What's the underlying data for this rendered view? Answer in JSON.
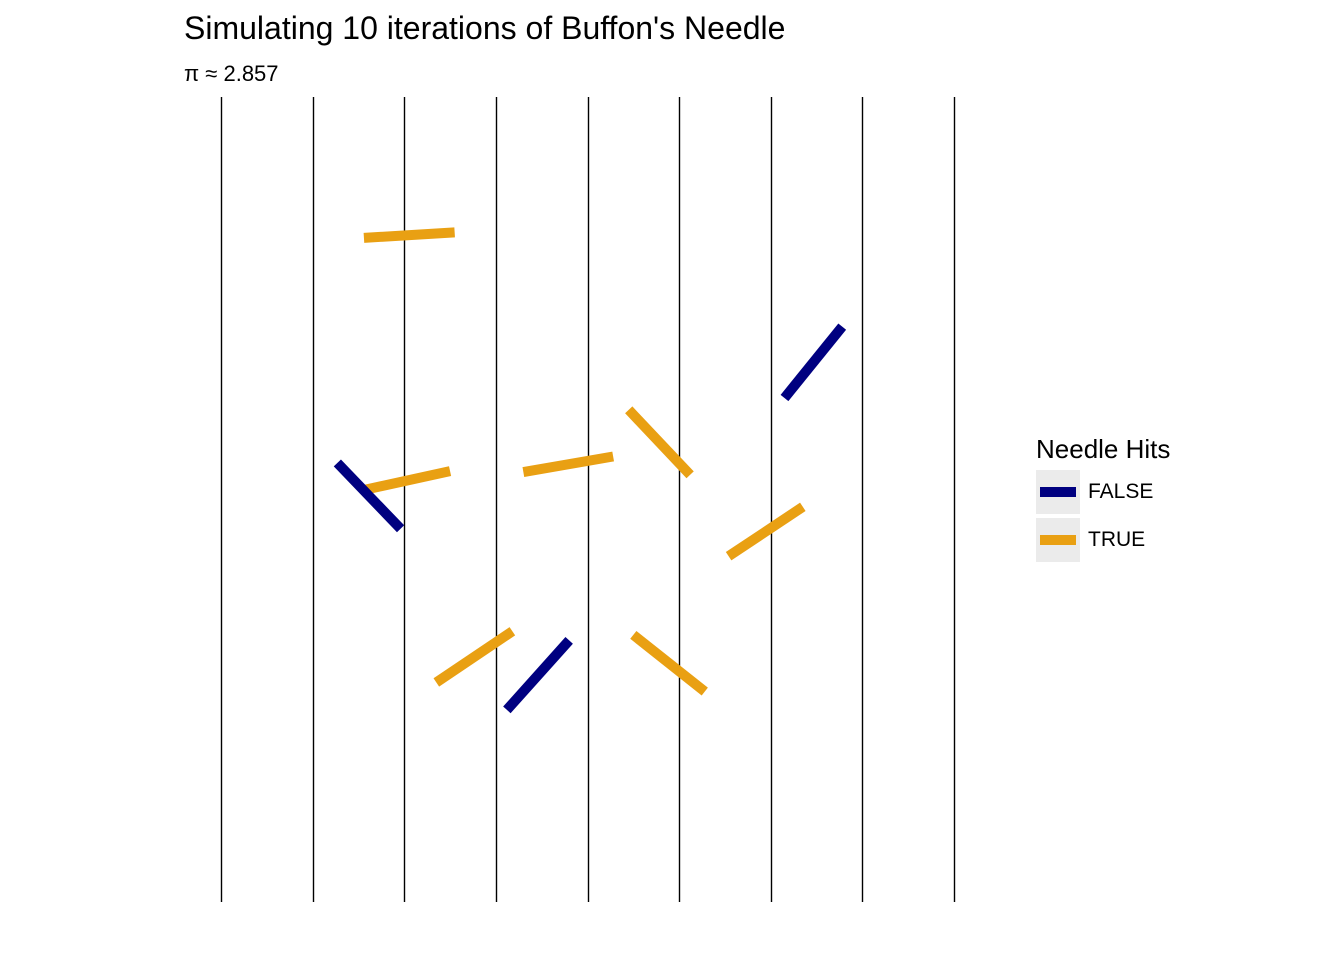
{
  "chart_data": {
    "type": "scatter",
    "title": "Simulating 10 iterations of Buffon's Needle",
    "subtitle": "π ≈ 2.857",
    "xlabel": "",
    "ylabel": "",
    "xlim": [
      0,
      8
    ],
    "ylim": [
      0,
      8.8
    ],
    "grid": false,
    "legend_position": "right",
    "line_positions": [
      0,
      1,
      2,
      3,
      4,
      5,
      6,
      7,
      8
    ],
    "legend": {
      "title": "Needle Hits",
      "entries": [
        {
          "label": "FALSE",
          "color": "#000080"
        },
        {
          "label": "TRUE",
          "color": "#e9a013"
        }
      ]
    },
    "needles": [
      {
        "x0": 1.56,
        "y0": 7.26,
        "x1": 2.55,
        "y1": 7.32,
        "hit": "TRUE"
      },
      {
        "x0": 6.15,
        "y0": 5.51,
        "x1": 6.78,
        "y1": 6.29,
        "hit": "FALSE"
      },
      {
        "x0": 4.45,
        "y0": 5.38,
        "x1": 5.12,
        "y1": 4.67,
        "hit": "TRUE"
      },
      {
        "x0": 3.3,
        "y0": 4.7,
        "x1": 4.28,
        "y1": 4.87,
        "hit": "TRUE"
      },
      {
        "x0": 1.54,
        "y0": 4.5,
        "x1": 2.5,
        "y1": 4.71,
        "hit": "TRUE"
      },
      {
        "x0": 1.27,
        "y0": 4.8,
        "x1": 1.96,
        "y1": 4.08,
        "hit": "FALSE"
      },
      {
        "x0": 5.54,
        "y0": 3.78,
        "x1": 6.35,
        "y1": 4.32,
        "hit": "TRUE"
      },
      {
        "x0": 2.35,
        "y0": 2.4,
        "x1": 3.18,
        "y1": 2.96,
        "hit": "TRUE"
      },
      {
        "x0": 3.12,
        "y0": 2.1,
        "x1": 3.8,
        "y1": 2.86,
        "hit": "FALSE"
      },
      {
        "x0": 4.5,
        "y0": 2.92,
        "x1": 5.28,
        "y1": 2.3,
        "hit": "TRUE"
      }
    ]
  }
}
